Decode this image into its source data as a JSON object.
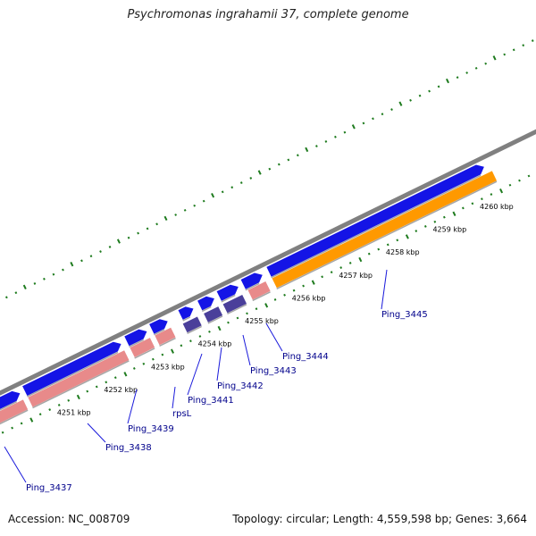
{
  "title": "Psychromonas ingrahamii 37, complete genome",
  "footer": {
    "accession": "Accession: NC_008709",
    "topology": "Topology: circular; Length: 4,559,598 bp; Genes: 3,664"
  },
  "colors": {
    "backbone": "#808080",
    "forward_cds": "#1414e6",
    "reverse_cds": "#e88a8a",
    "rna": "#4a3f9a",
    "highlight": "#ff9900",
    "ticks": "#1e7b1e",
    "label": "#00008b"
  },
  "axis": {
    "unit": "kbp",
    "ticks": [
      {
        "kbp": 4251,
        "label": "4251 kbp"
      },
      {
        "kbp": 4252,
        "label": "4252 kbp"
      },
      {
        "kbp": 4253,
        "label": "4253 kbp"
      },
      {
        "kbp": 4254,
        "label": "4254 kbp"
      },
      {
        "kbp": 4255,
        "label": "4255 kbp"
      },
      {
        "kbp": 4256,
        "label": "4256 kbp"
      },
      {
        "kbp": 4257,
        "label": "4257 kbp"
      },
      {
        "kbp": 4258,
        "label": "4258 kbp"
      },
      {
        "kbp": 4259,
        "label": "4259 kbp"
      },
      {
        "kbp": 4260,
        "label": "4260 kbp"
      }
    ]
  },
  "genes": [
    {
      "name": "Ping_3437"
    },
    {
      "name": "Ping_3438"
    },
    {
      "name": "Ping_3439"
    },
    {
      "name": "rpsL"
    },
    {
      "name": "Ping_3441"
    },
    {
      "name": "Ping_3442"
    },
    {
      "name": "Ping_3443"
    },
    {
      "name": "Ping_3444"
    },
    {
      "name": "Ping_3445"
    }
  ]
}
